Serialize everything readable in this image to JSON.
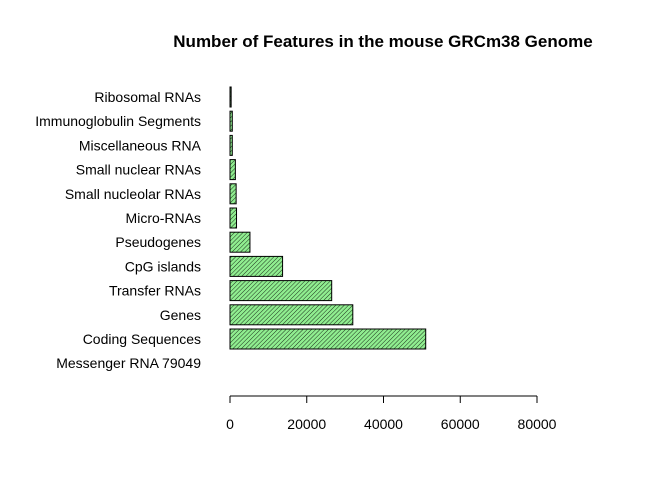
{
  "chart_data": {
    "type": "bar",
    "orientation": "horizontal",
    "title": "Number of Features in the mouse GRCm38 Genome",
    "xlabel": "",
    "ylabel": "",
    "categories": [
      "Coding Sequences",
      "Genes",
      "Transfer RNAs",
      "CpG islands",
      "Pseudogenes",
      "Micro-RNAs",
      "Small nucleolar RNAs",
      "Small nuclear RNAs",
      "Miscellaneous RNA",
      "Immunoglobulin Segments",
      "Ribosomal RNAs"
    ],
    "values": [
      51000,
      32000,
      26500,
      13700,
      5200,
      1700,
      1600,
      1400,
      600,
      600,
      300
    ],
    "extra_labels": [
      "Messenger RNA 79049"
    ],
    "xlim": [
      0,
      80000
    ],
    "xticks": [
      0,
      20000,
      40000,
      60000,
      80000
    ],
    "bar_fill": "#90ee90",
    "hatch_color": "#000000",
    "grid": false,
    "legend": "none"
  }
}
